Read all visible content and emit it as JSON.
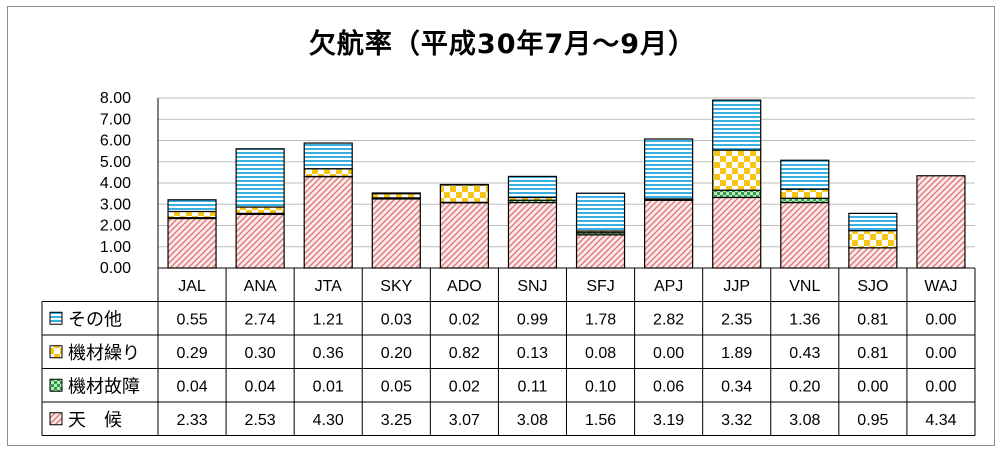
{
  "chart_data": {
    "type": "bar",
    "stacked": true,
    "title": "欠航率（平成30年7月～9月）",
    "categories": [
      "JAL",
      "ANA",
      "JTA",
      "SKY",
      "ADO",
      "SNJ",
      "SFJ",
      "APJ",
      "JJP",
      "VNL",
      "SJO",
      "WAJ"
    ],
    "ylim": [
      0,
      8
    ],
    "yticks": [
      "0.00",
      "1.00",
      "2.00",
      "3.00",
      "4.00",
      "5.00",
      "6.00",
      "7.00",
      "8.00"
    ],
    "grid": true,
    "series": [
      {
        "name": "天　候",
        "key": "weather",
        "color": "#e8a0a0",
        "values": [
          2.33,
          2.53,
          4.3,
          3.25,
          3.07,
          3.08,
          1.56,
          3.19,
          3.32,
          3.08,
          0.95,
          4.34
        ],
        "labels": [
          "2.33",
          "2.53",
          "4.30",
          "3.25",
          "3.07",
          "3.08",
          "1.56",
          "3.19",
          "3.32",
          "3.08",
          "0.95",
          "4.34"
        ]
      },
      {
        "name": "機材故障",
        "key": "failure",
        "color": "#2e9e45",
        "values": [
          0.04,
          0.04,
          0.01,
          0.05,
          0.02,
          0.11,
          0.1,
          0.06,
          0.34,
          0.2,
          0.0,
          0.0
        ],
        "labels": [
          "0.04",
          "0.04",
          "0.01",
          "0.05",
          "0.02",
          "0.11",
          "0.10",
          "0.06",
          "0.34",
          "0.20",
          "0.00",
          "0.00"
        ]
      },
      {
        "name": "機材繰り",
        "key": "rotation",
        "color": "#f5c518",
        "values": [
          0.29,
          0.3,
          0.36,
          0.2,
          0.82,
          0.13,
          0.08,
          0.0,
          1.89,
          0.43,
          0.81,
          0.0
        ],
        "labels": [
          "0.29",
          "0.30",
          "0.36",
          "0.20",
          "0.82",
          "0.13",
          "0.08",
          "0.00",
          "1.89",
          "0.43",
          "0.81",
          "0.00"
        ]
      },
      {
        "name": "その他",
        "key": "other",
        "color": "#3ab0e0",
        "values": [
          0.55,
          2.74,
          1.21,
          0.03,
          0.02,
          0.99,
          1.78,
          2.82,
          2.35,
          1.36,
          0.81,
          0.0
        ],
        "labels": [
          "0.55",
          "2.74",
          "1.21",
          "0.03",
          "0.02",
          "0.99",
          "1.78",
          "2.82",
          "2.35",
          "1.36",
          "0.81",
          "0.00"
        ]
      }
    ],
    "table_row_order": [
      "other",
      "rotation",
      "failure",
      "weather"
    ]
  }
}
